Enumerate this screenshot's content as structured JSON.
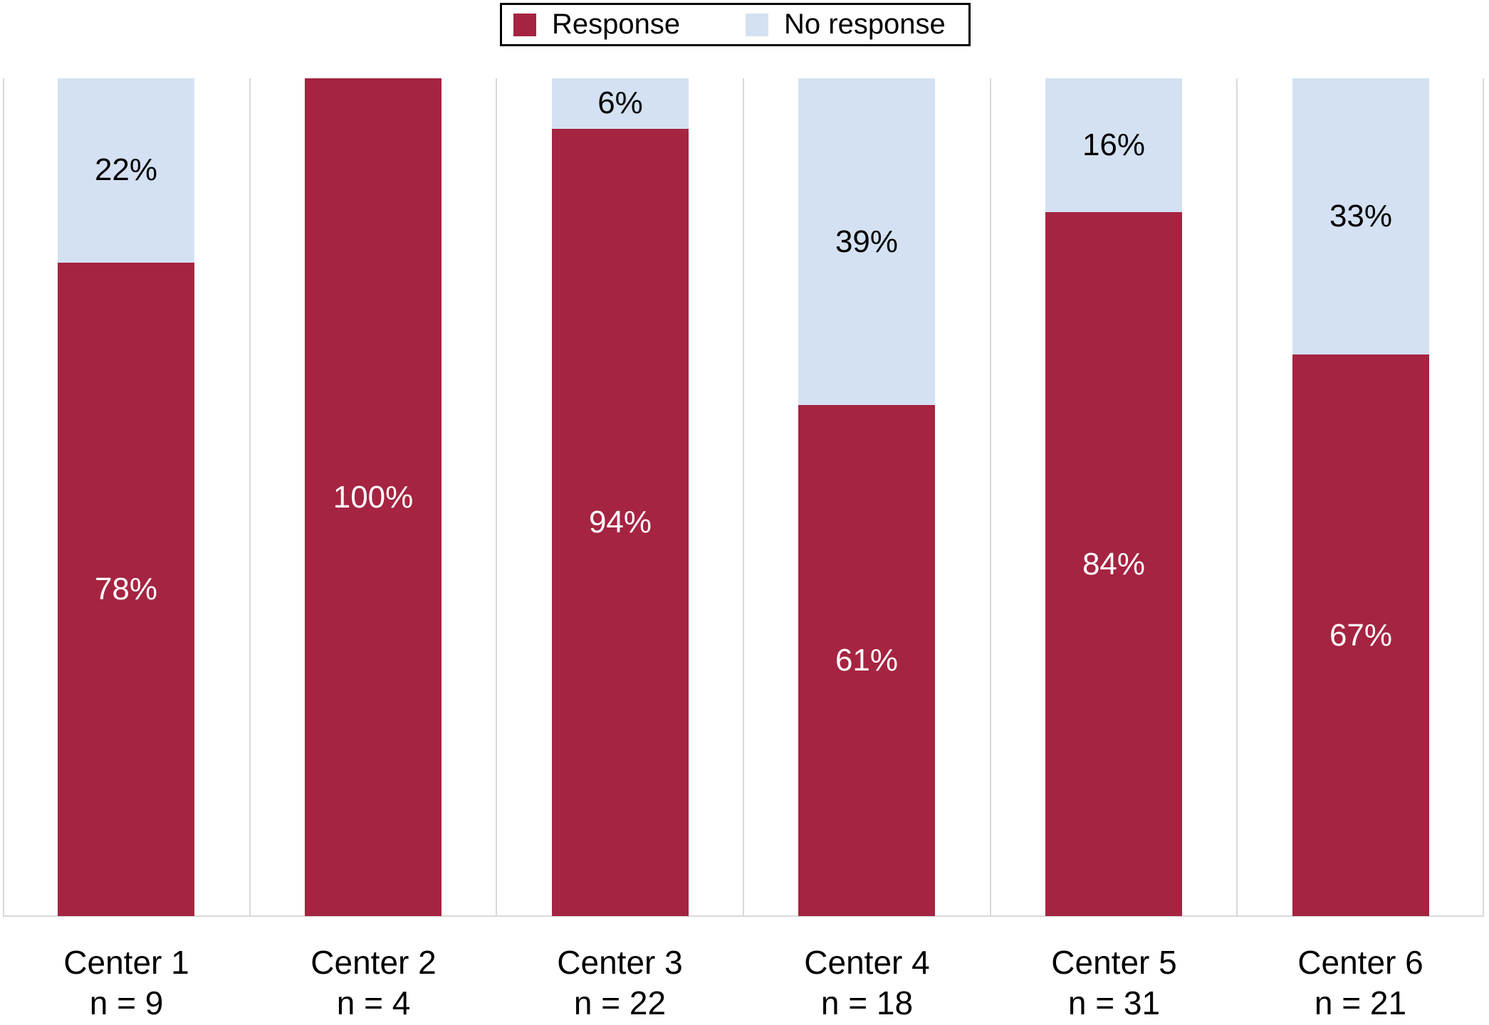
{
  "colors": {
    "response": "#A52441",
    "no_response": "#D4E1F2",
    "gridline": "#D9D9D9",
    "legend_border": "#000000",
    "label_on_response": "#FFFFFF",
    "label_on_no_response": "#000000",
    "background": "#FFFFFF"
  },
  "legend": {
    "position": "top",
    "items": [
      {
        "label": "Response",
        "color": "#A52441"
      },
      {
        "label": "No response",
        "color": "#D4E1F2"
      }
    ]
  },
  "chart_data": {
    "type": "bar",
    "subtype": "stacked-100-percent",
    "title": "",
    "xlabel": "",
    "ylabel": "",
    "ylim": [
      0,
      100
    ],
    "grid": "vertical-category-separators",
    "legend_position": "top",
    "value_suffix": "%",
    "categories": [
      "Center 1",
      "Center 2",
      "Center 3",
      "Center 4",
      "Center 5",
      "Center 6"
    ],
    "category_sublabels": [
      "n = 9",
      "n = 4",
      "n = 22",
      "n = 18",
      "n = 31",
      "n = 21"
    ],
    "series": [
      {
        "name": "Response",
        "color": "#A52441",
        "values": [
          78,
          100,
          94,
          61,
          84,
          67
        ]
      },
      {
        "name": "No response",
        "color": "#D4E1F2",
        "values": [
          22,
          0,
          6,
          39,
          16,
          33
        ]
      }
    ]
  }
}
